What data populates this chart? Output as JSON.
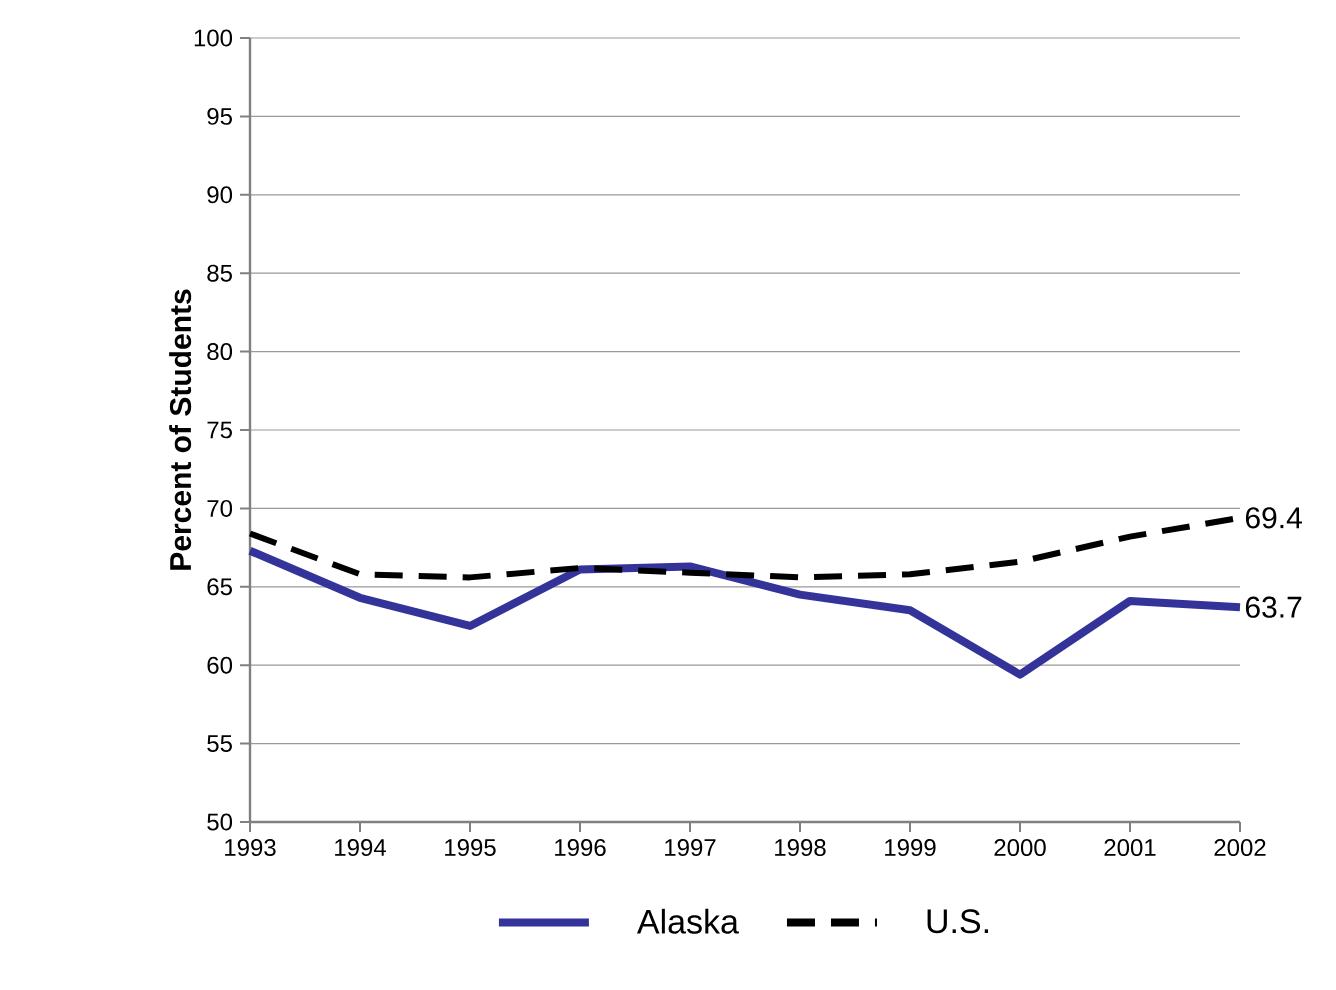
{
  "chart_data": {
    "type": "line",
    "ylabel": "Percent of Students",
    "x": [
      1993,
      1994,
      1995,
      1996,
      1997,
      1998,
      1999,
      2000,
      2001,
      2002
    ],
    "series": [
      {
        "name": "Alaska",
        "color": "#333399",
        "line_style": "solid",
        "values": [
          67.3,
          64.3,
          62.5,
          66.1,
          66.3,
          64.5,
          63.5,
          59.4,
          64.1,
          63.7
        ]
      },
      {
        "name": "U.S.",
        "color": "#000000",
        "line_style": "dashed",
        "values": [
          68.4,
          65.8,
          65.6,
          66.2,
          65.9,
          65.6,
          65.8,
          66.6,
          68.2,
          69.4
        ]
      }
    ],
    "annotations": [
      {
        "text": "63.7",
        "x": 2002,
        "y": 63.7
      },
      {
        "text": "69.4",
        "x": 2002,
        "y": 69.4
      }
    ],
    "xlim": [
      1993,
      2002
    ],
    "xticks": [
      1993,
      1994,
      1995,
      1996,
      1997,
      1998,
      1999,
      2000,
      2001,
      2002
    ],
    "ylim": [
      50,
      100
    ],
    "yticks": [
      50,
      55,
      60,
      65,
      70,
      75,
      80,
      85,
      90,
      95,
      100
    ],
    "grid": "y",
    "legend": "bottom",
    "marker": "none"
  }
}
